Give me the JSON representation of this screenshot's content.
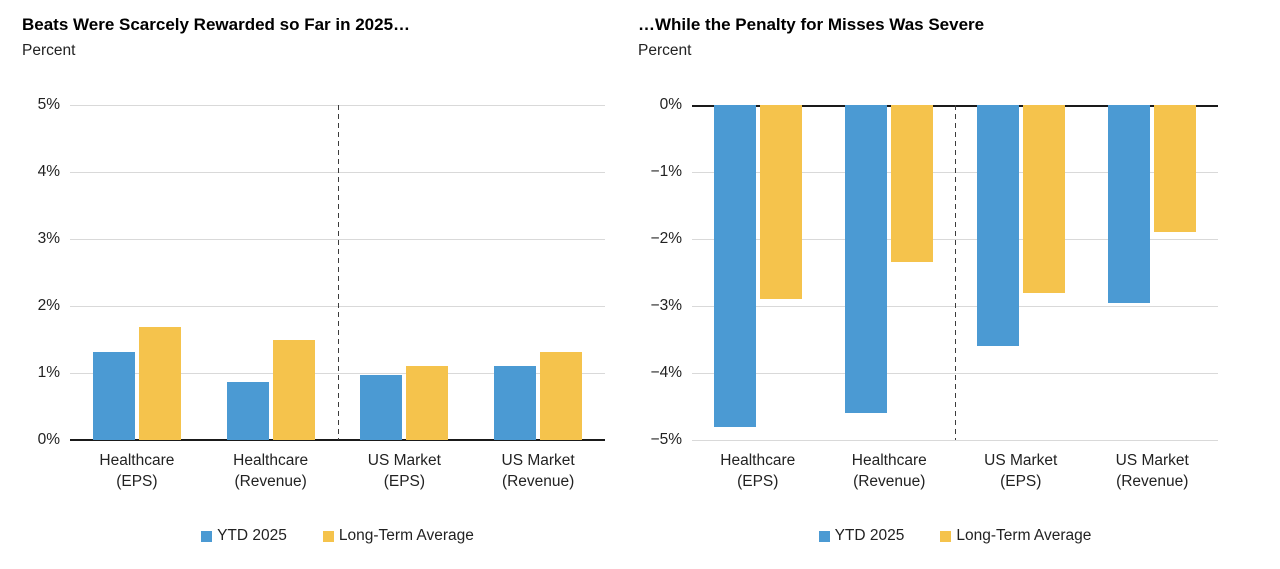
{
  "page": {
    "background": "#ffffff"
  },
  "colors": {
    "ytd_2025": "#4B9AD3",
    "long_term_average": "#F5C34C",
    "axis": "#1a1a1a",
    "gridline": "#d9d9d9",
    "separator": "#3c3c3c"
  },
  "chart_data": [
    {
      "type": "bar",
      "title": "Beats Were Scarcely Rewarded so Far in 2025…",
      "subtitle": "Percent",
      "categories": [
        [
          "Healthcare",
          "(EPS)"
        ],
        [
          "Healthcare",
          "(Revenue)"
        ],
        [
          "US Market",
          "(EPS)"
        ],
        [
          "US Market",
          "(Revenue)"
        ]
      ],
      "series": [
        {
          "name": "YTD 2025",
          "color": "#4B9AD3",
          "values": [
            1.32,
            0.87,
            0.97,
            1.1
          ]
        },
        {
          "name": "Long-Term Average",
          "color": "#F5C34C",
          "values": [
            1.69,
            1.5,
            1.1,
            1.32
          ]
        }
      ],
      "ylim": [
        0,
        5
      ],
      "yticks": [
        "5%",
        "4%",
        "3%",
        "2%",
        "1%",
        "0%"
      ],
      "grid": true,
      "legend_position": "bottom",
      "annotations": [
        "dashed vertical separator between Healthcare and US Market groups"
      ]
    },
    {
      "type": "bar",
      "title": "…While the Penalty for Misses Was Severe",
      "subtitle": "Percent",
      "categories": [
        [
          "Healthcare",
          "(EPS)"
        ],
        [
          "Healthcare",
          "(Revenue)"
        ],
        [
          "US Market",
          "(EPS)"
        ],
        [
          "US Market",
          "(Revenue)"
        ]
      ],
      "series": [
        {
          "name": "YTD 2025",
          "color": "#4B9AD3",
          "values": [
            -4.8,
            -4.6,
            -3.6,
            -2.95
          ]
        },
        {
          "name": "Long-Term Average",
          "color": "#F5C34C",
          "values": [
            -2.9,
            -2.35,
            -2.8,
            -1.9
          ]
        }
      ],
      "ylim": [
        -5,
        0
      ],
      "yticks": [
        "0%",
        "−1%",
        "−2%",
        "−3%",
        "−4%",
        "−5%"
      ],
      "grid": true,
      "legend_position": "bottom",
      "annotations": [
        "dashed vertical separator between Healthcare and US Market groups"
      ]
    }
  ]
}
